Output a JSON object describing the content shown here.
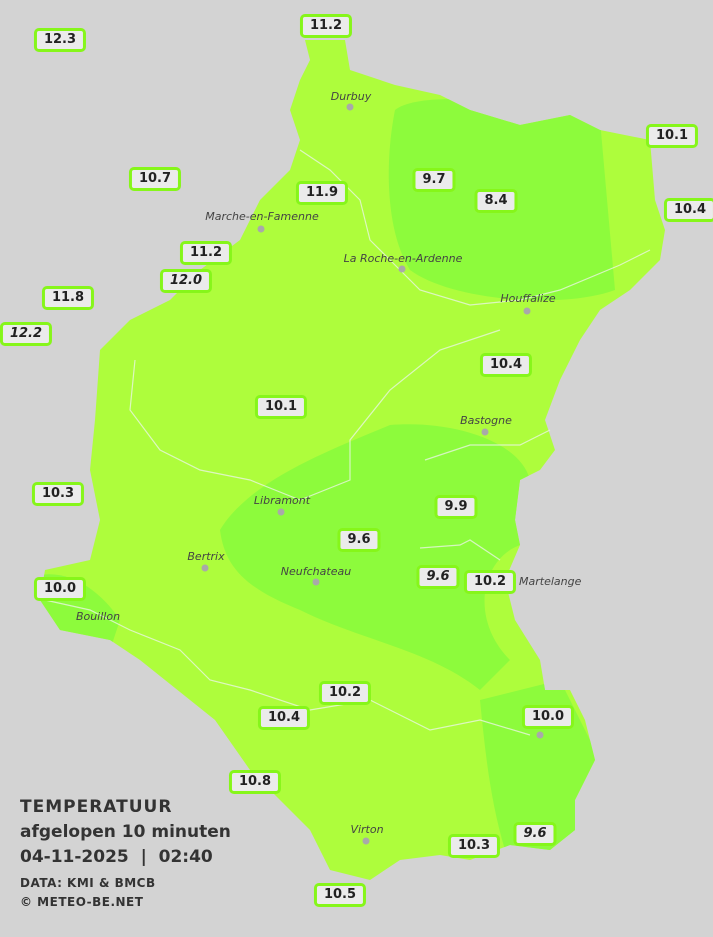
{
  "colors": {
    "background": "#d3d3d3",
    "zone_10_12": "#aefd3c",
    "zone_8_10": "#8dfb3c",
    "label_border": "#86f61a",
    "label_fill": "#ebebeb"
  },
  "legend": {
    "title": "TEMPERATUUR",
    "period": "afgelopen 10 minuten",
    "datetime": "04-11-2025  |  02:40",
    "source": "DATA: KMI & BMCB",
    "copyright": "© METEO-BE.NET"
  },
  "cities": [
    {
      "name": "Durbuy"
    },
    {
      "name": "Marche-en-Famenne"
    },
    {
      "name": "La Roche-en-Ardenne"
    },
    {
      "name": "Houffalize"
    },
    {
      "name": "Bastogne"
    },
    {
      "name": "Libramont"
    },
    {
      "name": "Bertrix"
    },
    {
      "name": "Neufchateau"
    },
    {
      "name": "Martelange"
    },
    {
      "name": "Bouillon"
    },
    {
      "name": "Virton"
    }
  ],
  "readings": [
    {
      "value": "12.3",
      "italic": false
    },
    {
      "value": "11.2",
      "italic": false
    },
    {
      "value": "10.1",
      "italic": false
    },
    {
      "value": "10.7",
      "italic": false
    },
    {
      "value": "9.7",
      "italic": false
    },
    {
      "value": "8.4",
      "italic": false
    },
    {
      "value": "11.9",
      "italic": false
    },
    {
      "value": "10.4",
      "italic": false
    },
    {
      "value": "11.2",
      "italic": false
    },
    {
      "value": "12.0",
      "italic": true
    },
    {
      "value": "11.8",
      "italic": false
    },
    {
      "value": "12.2",
      "italic": true
    },
    {
      "value": "10.4",
      "italic": false
    },
    {
      "value": "10.1",
      "italic": false
    },
    {
      "value": "10.3",
      "italic": false
    },
    {
      "value": "9.9",
      "italic": false
    },
    {
      "value": "9.6",
      "italic": false
    },
    {
      "value": "9.6",
      "italic": true
    },
    {
      "value": "10.2",
      "italic": false
    },
    {
      "value": "10.0",
      "italic": false
    },
    {
      "value": "10.2",
      "italic": false
    },
    {
      "value": "10.4",
      "italic": false
    },
    {
      "value": "10.0",
      "italic": false
    },
    {
      "value": "10.8",
      "italic": false
    },
    {
      "value": "9.6",
      "italic": true
    },
    {
      "value": "10.3",
      "italic": false
    },
    {
      "value": "10.5",
      "italic": false
    }
  ]
}
